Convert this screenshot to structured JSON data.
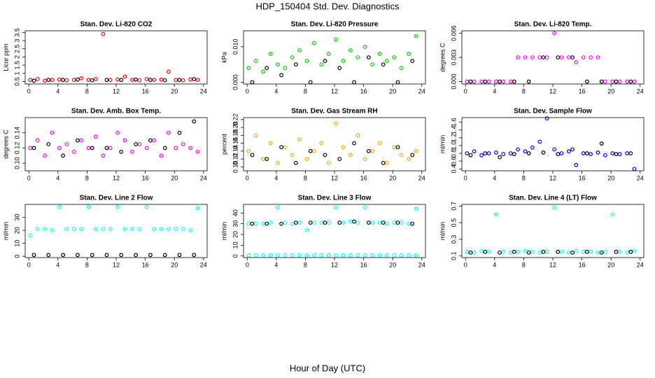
{
  "title": "HDP_150404  Std. Dev. Diagnostics",
  "xlabel": "Hour of Day (UTC)",
  "chart_data": [
    {
      "type": "scatter",
      "title": "Stan. Dev. Li-820 CO2",
      "ylabel": "Licor ppm",
      "xlim": [
        -0.5,
        24.5
      ],
      "xticks": [
        0,
        4,
        8,
        12,
        16,
        20,
        24
      ],
      "ylim": [
        0.35,
        3.6
      ],
      "yticks": [
        0.5,
        1,
        1.5,
        2,
        2.5,
        3,
        3.5
      ],
      "series": [
        {
          "color": "#ff0000",
          "x": [
            0.2,
            1.2,
            2.2,
            3.2,
            4.2,
            5.2,
            6.2,
            7.2,
            8.2,
            9.2,
            10.2,
            11.2,
            12.2,
            13.2,
            14.2,
            15.2,
            16.2,
            17.2,
            18.2,
            19.2,
            20.2,
            21.2,
            22.2,
            23.2
          ],
          "values": [
            0.6,
            0.65,
            0.55,
            0.6,
            0.62,
            0.58,
            0.6,
            0.7,
            0.6,
            0.65,
            3.4,
            0.6,
            0.62,
            0.8,
            0.6,
            0.58,
            0.65,
            0.6,
            0.62,
            1.1,
            0.6,
            0.58,
            0.62,
            0.6
          ]
        },
        {
          "color": "#000000",
          "x": [
            0.7,
            2.7,
            4.7,
            6.7,
            8.7,
            10.7,
            12.7,
            14.7,
            16.7,
            18.7,
            20.7,
            22.7
          ],
          "values": [
            0.55,
            0.6,
            0.6,
            0.62,
            0.58,
            0.6,
            0.6,
            0.62,
            0.6,
            0.58,
            0.6,
            0.65
          ]
        }
      ]
    },
    {
      "type": "scatter",
      "title": "Stan. Dev. Li-820 Pressure",
      "ylabel": "kPa",
      "xlim": [
        -0.5,
        24.5
      ],
      "xticks": [
        0,
        4,
        8,
        12,
        16,
        20,
        24
      ],
      "ylim": [
        -0.0005,
        0.0145
      ],
      "yticks": [
        {
          "value": 0,
          "label": "0.000"
        },
        {
          "value": 0.01,
          "label": "0.010"
        }
      ],
      "series": [
        {
          "color": "#00cc00",
          "x": [
            0.2,
            1.2,
            2.2,
            3.2,
            4.2,
            5.2,
            6.2,
            7.2,
            8.2,
            9.2,
            10.2,
            11.2,
            12.2,
            13.2,
            14.2,
            15.2,
            16.2,
            17.2,
            18.2,
            19.2,
            20.2,
            21.2,
            22.2,
            23.2
          ],
          "values": [
            0.004,
            0.006,
            0.003,
            0.008,
            0.005,
            0.004,
            0.007,
            0.009,
            0.006,
            0.011,
            0.005,
            0.008,
            0.012,
            0.006,
            0.009,
            0.007,
            0.01,
            0.005,
            0.008,
            0.006,
            0.007,
            0.004,
            0.008,
            0.013
          ]
        },
        {
          "color": "#000000",
          "x": [
            0.7,
            2.7,
            4.7,
            6.7,
            8.7,
            10.7,
            12.7,
            14.7,
            16.7,
            18.7,
            20.7,
            22.7
          ],
          "values": [
            0,
            0.004,
            0.002,
            0.005,
            0,
            0.006,
            0.004,
            0,
            0.007,
            0.005,
            0,
            0.006
          ]
        }
      ]
    },
    {
      "type": "scatter",
      "title": "Stan. Dev. Li-820 Temp.",
      "ylabel": "degrees C",
      "xlim": [
        -0.5,
        24.5
      ],
      "xticks": [
        0,
        4,
        8,
        12,
        16,
        20,
        24
      ],
      "ylim": [
        -0.0003,
        0.0063
      ],
      "yticks": [
        {
          "value": 0,
          "label": "0.000"
        },
        {
          "value": 0.003,
          "label": "0.003"
        },
        {
          "value": 0.006,
          "label": "0.006"
        }
      ],
      "series": [
        {
          "color": "#ff00ff",
          "x": [
            0.2,
            1.2,
            2.2,
            3.2,
            4.2,
            5.2,
            6.2,
            7.2,
            8.2,
            9.2,
            10.2,
            11.2,
            12.2,
            13.2,
            14.2,
            15.2,
            16.2,
            17.2,
            18.2,
            19.2,
            20.2,
            21.2,
            22.2,
            23.2
          ],
          "values": [
            0,
            0,
            0,
            0,
            0,
            0,
            0,
            0.003,
            0.003,
            0.003,
            0.003,
            0.003,
            0.006,
            0.003,
            0.003,
            0.0024,
            0.003,
            0.003,
            0.003,
            0,
            0,
            0,
            0,
            0
          ]
        },
        {
          "color": "#000000",
          "x": [
            0.7,
            2.7,
            4.7,
            6.7,
            8.7,
            10.7,
            12.7,
            14.7,
            16.7,
            18.7,
            20.7,
            22.7
          ],
          "values": [
            0,
            0,
            0,
            0,
            0,
            0.003,
            0.003,
            0.003,
            0,
            0,
            0,
            0
          ]
        }
      ]
    },
    {
      "type": "scatter",
      "title": "Stan. Dev. Amb. Box Temp.",
      "ylabel": "degrees C",
      "xlim": [
        -0.5,
        24.5
      ],
      "xticks": [
        0,
        4,
        8,
        12,
        16,
        20,
        24
      ],
      "ylim": [
        0.09,
        0.16
      ],
      "yticks": [
        {
          "value": 0.1,
          "label": "0.10"
        },
        0.12,
        0.14
      ],
      "series": [
        {
          "color": "#ff00ff",
          "x": [
            0.2,
            1.2,
            2.2,
            3.2,
            4.2,
            5.2,
            6.2,
            7.2,
            8.2,
            9.2,
            10.2,
            11.2,
            12.2,
            13.2,
            14.2,
            15.2,
            16.2,
            17.2,
            18.2,
            19.2,
            20.2,
            21.2,
            22.2,
            23.2
          ],
          "values": [
            0.12,
            0.13,
            0.11,
            0.14,
            0.12,
            0.125,
            0.115,
            0.13,
            0.12,
            0.135,
            0.11,
            0.12,
            0.14,
            0.13,
            0.115,
            0.125,
            0.12,
            0.13,
            0.11,
            0.14,
            0.12,
            0.125,
            0.12,
            0.115
          ]
        },
        {
          "color": "#000000",
          "x": [
            0.7,
            2.7,
            4.7,
            6.7,
            8.7,
            10.7,
            12.7,
            14.7,
            16.7,
            18.7,
            20.7,
            22.7
          ],
          "values": [
            0.12,
            0.125,
            0.11,
            0.13,
            0.12,
            0.12,
            0.115,
            0.125,
            0.13,
            0.12,
            0.14,
            0.155
          ]
        }
      ]
    },
    {
      "type": "scatter",
      "title": "Stan. Dev. Gas Stream RH",
      "ylabel": "percent",
      "xlim": [
        -0.5,
        24.5
      ],
      "xticks": [
        0,
        4,
        8,
        12,
        16,
        20,
        24
      ],
      "ylim": [
        0.09,
        0.225
      ],
      "yticks": [
        {
          "value": 0.1,
          "label": "0.10"
        },
        0.12,
        0.14,
        0.16,
        0.18,
        {
          "value": 0.2,
          "label": "0.20"
        },
        0.22
      ],
      "series": [
        {
          "color": "#ffa500",
          "x": [
            0.2,
            1.2,
            2.2,
            3.2,
            4.2,
            5.2,
            6.2,
            7.2,
            8.2,
            9.2,
            10.2,
            11.2,
            12.2,
            13.2,
            14.2,
            15.2,
            16.2,
            17.2,
            18.2,
            19.2,
            20.2,
            21.2,
            22.2,
            23.2
          ],
          "values": [
            0.14,
            0.18,
            0.12,
            0.16,
            0.11,
            0.15,
            0.13,
            0.17,
            0.12,
            0.14,
            0.16,
            0.11,
            0.21,
            0.15,
            0.13,
            0.18,
            0.12,
            0.14,
            0.16,
            0.11,
            0.15,
            0.13,
            0.12,
            0.14
          ]
        },
        {
          "color": "#000000",
          "x": [
            0.7,
            2.7,
            4.7,
            6.7,
            8.7,
            10.7,
            12.7,
            14.7,
            16.7,
            18.7,
            20.7,
            22.7
          ],
          "values": [
            0.13,
            0.12,
            0.15,
            0.11,
            0.14,
            0.13,
            0.12,
            0.16,
            0.14,
            0.11,
            0.15,
            0.13
          ]
        }
      ]
    },
    {
      "type": "scatter",
      "title": "Stan. Dev. Sample Flow",
      "ylabel": "ml/min",
      "xlim": [
        -0.5,
        24.5
      ],
      "xticks": [
        0,
        4,
        8,
        12,
        16,
        20,
        24
      ],
      "ylim": [
        0.35,
        1.72
      ],
      "yticks": [
        0.4,
        0.6,
        0.8,
        {
          "value": 1,
          "label": "1.0"
        },
        1.2,
        1.4,
        1.6
      ],
      "series": [
        {
          "color": "#0000ff",
          "x": [
            0.2,
            1.2,
            2.2,
            3.2,
            4.2,
            5.2,
            6.2,
            7.2,
            8.2,
            9.2,
            10.2,
            11.2,
            12.2,
            13.2,
            14.2,
            15.2,
            16.2,
            17.2,
            18.2,
            19.2,
            20.2,
            21.2,
            22.2,
            23.2
          ],
          "values": [
            0.8,
            0.85,
            0.75,
            0.8,
            0.82,
            0.78,
            0.8,
            0.9,
            0.85,
            0.95,
            1.1,
            1.7,
            0.9,
            0.8,
            0.85,
            0.5,
            0.8,
            0.78,
            0.82,
            0.75,
            0.8,
            0.78,
            0.8,
            0.4
          ]
        },
        {
          "color": "#000000",
          "x": [
            0.7,
            2.7,
            4.7,
            6.7,
            8.7,
            10.7,
            12.7,
            14.7,
            16.7,
            18.7,
            20.7,
            22.7
          ],
          "values": [
            0.75,
            0.8,
            0.7,
            0.78,
            0.8,
            0.82,
            0.78,
            0.9,
            0.8,
            1.05,
            0.78,
            0.8
          ]
        }
      ]
    },
    {
      "type": "scatter",
      "title": "Stan. Dev. Line 2 Flow",
      "ylabel": "ml/min",
      "xlim": [
        -0.5,
        24.5
      ],
      "xticks": [
        0,
        4,
        8,
        12,
        16,
        20,
        24
      ],
      "ylim": [
        -1,
        40
      ],
      "yticks": [
        0,
        10,
        20,
        30
      ],
      "series": [
        {
          "color": "#00ffff",
          "x": [
            0.2,
            1.2,
            2.2,
            3.2,
            4.2,
            5.2,
            6.2,
            7.2,
            8.2,
            9.2,
            10.2,
            11.2,
            12.2,
            13.2,
            14.2,
            15.2,
            16.2,
            17.2,
            18.2,
            19.2,
            20.2,
            21.2,
            22.2,
            23.2
          ],
          "values": [
            16,
            21,
            21,
            20,
            38,
            21,
            21,
            21,
            38,
            21,
            21,
            21,
            38,
            21,
            21,
            21,
            38,
            21,
            21,
            21,
            21,
            21,
            20,
            37
          ]
        },
        {
          "color": "#000000",
          "x": [
            0.7,
            2.7,
            4.7,
            6.7,
            8.7,
            10.7,
            12.7,
            14.7,
            16.7,
            18.7,
            20.7,
            22.7
          ],
          "values": [
            1,
            1,
            1,
            1,
            1,
            1,
            1,
            1,
            1,
            1,
            1,
            1
          ]
        }
      ]
    },
    {
      "type": "scatter",
      "title": "Stan. Dev. Line 3 Flow",
      "ylabel": "ml/min",
      "xlim": [
        -0.5,
        24.5
      ],
      "xticks": [
        0,
        4,
        8,
        12,
        16,
        20,
        24
      ],
      "ylim": [
        -1.5,
        48
      ],
      "yticks": [
        0,
        10,
        20,
        30,
        40
      ],
      "series": [
        {
          "color": "#00ffff",
          "x": [
            0.2,
            1.2,
            2.2,
            3.2,
            4.2,
            5.2,
            6.2,
            7.2,
            8.2,
            9.2,
            10.2,
            11.2,
            12.2,
            13.2,
            14.2,
            15.2,
            16.2,
            17.2,
            18.2,
            19.2,
            20.2,
            21.2,
            22.2,
            23.2
          ],
          "values": [
            30,
            30,
            30,
            31,
            45,
            31,
            30,
            31,
            24,
            31,
            31,
            31,
            45,
            31,
            32,
            31,
            45,
            31,
            31,
            30,
            31,
            31,
            30,
            44
          ]
        },
        {
          "color": "#00ffff",
          "x": [
            0.2,
            1.2,
            2.2,
            3.2,
            4.2,
            5.2,
            6.2,
            7.2,
            8.2,
            9.2,
            10.2,
            11.2,
            12.2,
            13.2,
            14.2,
            15.2,
            16.2,
            17.2,
            18.2,
            19.2,
            20.2,
            21.2,
            22.2,
            23.2
          ],
          "values": [
            0.5,
            0.5,
            0.5,
            0.5,
            0.5,
            0.5,
            0.5,
            0.5,
            0.5,
            0.5,
            0.5,
            0.5,
            0.5,
            0.5,
            0.5,
            0.5,
            0.5,
            0.5,
            0.5,
            0.5,
            0.5,
            0.5,
            0.5,
            0.5
          ]
        },
        {
          "color": "#000000",
          "x": [
            0.7,
            2.7,
            4.7,
            6.7,
            8.7,
            10.7,
            12.7,
            14.7,
            16.7,
            18.7,
            20.7,
            22.7
          ],
          "values": [
            30,
            30,
            30,
            31,
            31,
            31,
            31,
            32,
            31,
            31,
            31,
            30
          ]
        }
      ]
    },
    {
      "type": "scatter",
      "title": "Stan. Dev. Line 4 (LT) Flow",
      "ylabel": "ml/min",
      "xlim": [
        -0.5,
        24.5
      ],
      "xticks": [
        0,
        4,
        8,
        12,
        16,
        20,
        24
      ],
      "ylim": [
        0.08,
        0.72
      ],
      "yticks": [
        0.1,
        0.3,
        0.5,
        0.7
      ],
      "series": [
        {
          "color": "#00ffff",
          "x": [
            0.2,
            1.2,
            2.2,
            3.2,
            4.2,
            5.2,
            6.2,
            7.2,
            8.2,
            9.2,
            10.2,
            11.2,
            12.2,
            13.2,
            14.2,
            15.2,
            16.2,
            17.2,
            18.2,
            19.2,
            20.2,
            21.2,
            22.2,
            23.2
          ],
          "values": [
            0.15,
            0.14,
            0.16,
            0.15,
            0.6,
            0.15,
            0.14,
            0.15,
            0.16,
            0.15,
            0.14,
            0.15,
            0.68,
            0.15,
            0.14,
            0.16,
            0.15,
            0.15,
            0.14,
            0.15,
            0.6,
            0.15,
            0.14,
            0.16
          ]
        },
        {
          "color": "#000000",
          "x": [
            0.7,
            2.7,
            4.7,
            6.7,
            8.7,
            10.7,
            12.7,
            14.7,
            16.7,
            18.7,
            20.7,
            22.7
          ],
          "values": [
            0.14,
            0.15,
            0.14,
            0.15,
            0.14,
            0.15,
            0.15,
            0.14,
            0.15,
            0.14,
            0.15,
            0.15
          ]
        }
      ]
    }
  ]
}
